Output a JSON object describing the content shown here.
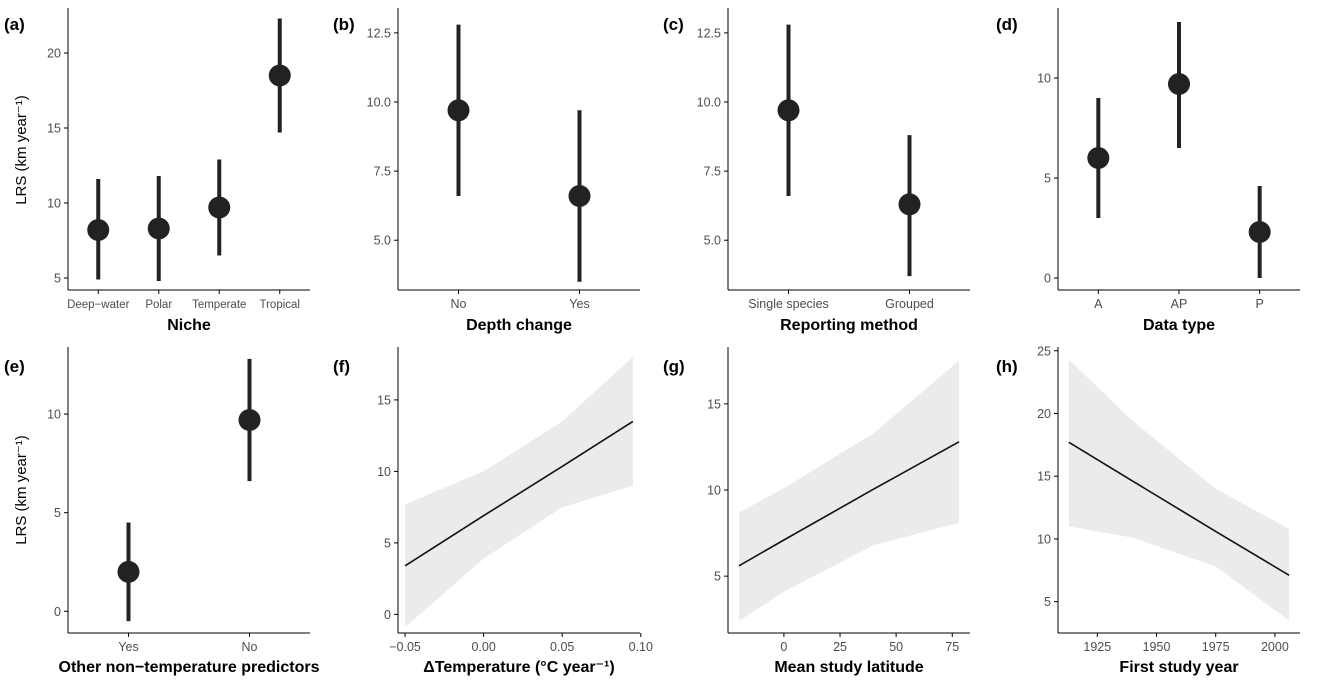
{
  "colors": {
    "marker": "#222222",
    "ribbon": "#ebebeb",
    "line": "#111111",
    "axis": "#000000"
  },
  "chart_data": [
    {
      "panel": "(a)",
      "type": "scatter",
      "categories": [
        "Deep−water",
        "Polar",
        "Temperate",
        "Tropical"
      ],
      "values": [
        8.2,
        8.3,
        9.7,
        18.5
      ],
      "lower": [
        4.9,
        4.8,
        6.5,
        14.7
      ],
      "upper": [
        11.6,
        11.8,
        12.9,
        22.3
      ],
      "xlabel": "Niche",
      "ylabel": "LRS (km year⁻¹)",
      "ylim": [
        4.2,
        23.0
      ],
      "yticks": [
        5,
        10,
        15,
        20
      ]
    },
    {
      "panel": "(b)",
      "type": "scatter",
      "categories": [
        "No",
        "Yes"
      ],
      "values": [
        9.7,
        6.6
      ],
      "lower": [
        6.6,
        3.5
      ],
      "upper": [
        12.8,
        9.7
      ],
      "xlabel": "Depth change",
      "ylabel": "",
      "ylim": [
        3.2,
        13.4
      ],
      "yticks": [
        5.0,
        7.5,
        10.0,
        12.5
      ]
    },
    {
      "panel": "(c)",
      "type": "scatter",
      "categories": [
        "Single species",
        "Grouped"
      ],
      "values": [
        9.7,
        6.3
      ],
      "lower": [
        6.6,
        3.7
      ],
      "upper": [
        12.8,
        8.8
      ],
      "xlabel": "Reporting method",
      "ylabel": "",
      "ylim": [
        3.2,
        13.4
      ],
      "yticks": [
        5.0,
        7.5,
        10.0,
        12.5
      ]
    },
    {
      "panel": "(d)",
      "type": "scatter",
      "categories": [
        "A",
        "AP",
        "P"
      ],
      "values": [
        6.0,
        9.7,
        2.3
      ],
      "lower": [
        3.0,
        6.5,
        0.0
      ],
      "upper": [
        9.0,
        12.8,
        4.6
      ],
      "xlabel": "Data type",
      "ylabel": "",
      "ylim": [
        -0.6,
        13.5
      ],
      "yticks": [
        0,
        5,
        10
      ]
    },
    {
      "panel": "(e)",
      "type": "scatter",
      "categories": [
        "Yes",
        "No"
      ],
      "values": [
        2.0,
        9.7
      ],
      "lower": [
        -0.5,
        6.6
      ],
      "upper": [
        4.5,
        12.8
      ],
      "xlabel": "Other non−temperature predictors",
      "ylabel": "LRS (km year⁻¹)",
      "ylim": [
        -1.1,
        13.4
      ],
      "yticks": [
        0,
        5,
        10
      ]
    },
    {
      "panel": "(f)",
      "type": "line",
      "x": [
        -0.05,
        0.0,
        0.05,
        0.095
      ],
      "y": [
        3.4,
        6.9,
        10.35,
        13.5
      ],
      "lower": [
        -0.9,
        3.9,
        7.5,
        9.0
      ],
      "upper": [
        7.7,
        10.0,
        13.5,
        18.0
      ],
      "xlabel": "ΔTemperature (°C year⁻¹)",
      "ylabel": "",
      "xlim": [
        -0.0545,
        0.0995
      ],
      "ylim": [
        -1.3,
        18.7
      ],
      "xticks": [
        -0.05,
        0.0,
        0.05,
        0.1
      ],
      "xticklabels": [
        "−0.05",
        "0.00",
        "0.05",
        "0.10"
      ],
      "yticks": [
        0,
        5,
        10,
        15
      ]
    },
    {
      "panel": "(g)",
      "type": "line",
      "x": [
        -20,
        0,
        40,
        78
      ],
      "y": [
        5.6,
        7.1,
        10.05,
        12.8
      ],
      "lower": [
        2.4,
        4.1,
        6.8,
        8.1
      ],
      "upper": [
        8.7,
        10.1,
        13.3,
        17.5
      ],
      "xlabel": "Mean study latitude",
      "ylabel": "",
      "xlim": [
        -24.9,
        82.9
      ],
      "ylim": [
        1.7,
        18.3
      ],
      "xticks": [
        0,
        25,
        50,
        75
      ],
      "xticklabels": [
        "0",
        "25",
        "50",
        "75"
      ],
      "yticks": [
        5,
        10,
        15
      ]
    },
    {
      "panel": "(h)",
      "type": "line",
      "x": [
        1913,
        1940,
        1975,
        2006
      ],
      "y": [
        17.7,
        14.6,
        10.6,
        7.1
      ],
      "lower": [
        11.0,
        10.1,
        7.8,
        3.5
      ],
      "upper": [
        24.3,
        19.4,
        14.0,
        10.8
      ],
      "xlabel": "First study year",
      "ylabel": "",
      "xlim": [
        1908.4,
        2010.6
      ],
      "ylim": [
        2.5,
        25.3
      ],
      "xticks": [
        1925,
        1950,
        1975,
        2000
      ],
      "xticklabels": [
        "1925",
        "1950",
        "1975",
        "2000"
      ],
      "yticks": [
        5,
        10,
        15,
        20,
        25
      ]
    }
  ]
}
